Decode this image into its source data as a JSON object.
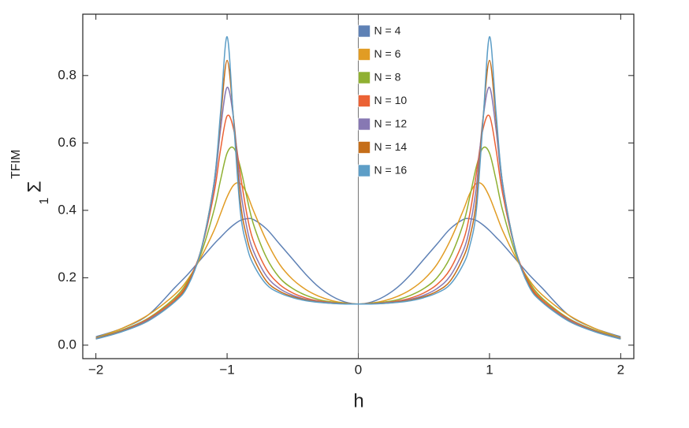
{
  "chart_data": {
    "type": "line",
    "x_label": "h",
    "y_label": "Σ",
    "y_label_sub": "1",
    "y_label_sup": "TFIM",
    "x": [
      -2,
      -1.8,
      -1.6,
      -1.4,
      -1.3,
      -1.2,
      -1.1,
      -1.05,
      -1,
      -0.95,
      -0.9,
      -0.85,
      -0.8,
      -0.7,
      -0.6,
      -0.5,
      -0.4,
      -0.3,
      -0.2,
      -0.1,
      0,
      0.1,
      0.2,
      0.3,
      0.4,
      0.5,
      0.6,
      0.7,
      0.8,
      0.85,
      0.9,
      0.95,
      1,
      1.05,
      1.1,
      1.2,
      1.3,
      1.4,
      1.6,
      1.8,
      2
    ],
    "series": [
      {
        "name": "N = 4",
        "color": "#5e81b5",
        "values": [
          0.025,
          0.05,
          0.09,
          0.17,
          0.21,
          0.255,
          0.3,
          0.32,
          0.34,
          0.357,
          0.37,
          0.375,
          0.373,
          0.345,
          0.3,
          0.255,
          0.21,
          0.172,
          0.145,
          0.128,
          0.122,
          0.128,
          0.145,
          0.172,
          0.21,
          0.255,
          0.3,
          0.345,
          0.373,
          0.375,
          0.37,
          0.357,
          0.34,
          0.32,
          0.3,
          0.255,
          0.21,
          0.17,
          0.09,
          0.05,
          0.025
        ]
      },
      {
        "name": "N = 6",
        "color": "#e19c24",
        "values": [
          0.022,
          0.05,
          0.09,
          0.15,
          0.195,
          0.26,
          0.34,
          0.39,
          0.44,
          0.475,
          0.48,
          0.45,
          0.4,
          0.31,
          0.24,
          0.195,
          0.165,
          0.145,
          0.132,
          0.125,
          0.122,
          0.125,
          0.132,
          0.145,
          0.165,
          0.195,
          0.24,
          0.31,
          0.4,
          0.45,
          0.48,
          0.475,
          0.44,
          0.39,
          0.34,
          0.26,
          0.195,
          0.15,
          0.09,
          0.05,
          0.022
        ]
      },
      {
        "name": "N = 8",
        "color": "#8fb032",
        "values": [
          0.021,
          0.045,
          0.08,
          0.14,
          0.19,
          0.27,
          0.4,
          0.49,
          0.57,
          0.585,
          0.53,
          0.44,
          0.36,
          0.26,
          0.2,
          0.168,
          0.148,
          0.135,
          0.128,
          0.124,
          0.122,
          0.124,
          0.128,
          0.135,
          0.148,
          0.168,
          0.2,
          0.26,
          0.36,
          0.44,
          0.53,
          0.585,
          0.57,
          0.49,
          0.4,
          0.27,
          0.19,
          0.14,
          0.08,
          0.045,
          0.021
        ]
      },
      {
        "name": "N = 10",
        "color": "#eb6235",
        "values": [
          0.02,
          0.043,
          0.078,
          0.135,
          0.185,
          0.28,
          0.45,
          0.58,
          0.68,
          0.64,
          0.51,
          0.39,
          0.31,
          0.225,
          0.18,
          0.155,
          0.14,
          0.131,
          0.126,
          0.123,
          0.122,
          0.123,
          0.126,
          0.131,
          0.14,
          0.155,
          0.18,
          0.225,
          0.31,
          0.39,
          0.51,
          0.64,
          0.68,
          0.58,
          0.45,
          0.28,
          0.185,
          0.135,
          0.078,
          0.043,
          0.02
        ]
      },
      {
        "name": "N = 12",
        "color": "#8778b3",
        "values": [
          0.02,
          0.042,
          0.075,
          0.13,
          0.18,
          0.28,
          0.47,
          0.64,
          0.765,
          0.67,
          0.47,
          0.35,
          0.28,
          0.205,
          0.168,
          0.148,
          0.136,
          0.129,
          0.125,
          0.123,
          0.122,
          0.123,
          0.125,
          0.129,
          0.136,
          0.148,
          0.168,
          0.205,
          0.28,
          0.35,
          0.47,
          0.67,
          0.765,
          0.64,
          0.47,
          0.28,
          0.18,
          0.13,
          0.075,
          0.042,
          0.02
        ]
      },
      {
        "name": "N = 14",
        "color": "#c56e1a",
        "values": [
          0.019,
          0.041,
          0.073,
          0.13,
          0.18,
          0.28,
          0.48,
          0.67,
          0.845,
          0.67,
          0.43,
          0.32,
          0.26,
          0.19,
          0.16,
          0.144,
          0.134,
          0.128,
          0.124,
          0.123,
          0.122,
          0.123,
          0.124,
          0.128,
          0.134,
          0.144,
          0.16,
          0.19,
          0.26,
          0.32,
          0.43,
          0.67,
          0.845,
          0.67,
          0.48,
          0.28,
          0.18,
          0.13,
          0.073,
          0.041,
          0.019
        ]
      },
      {
        "name": "N = 16",
        "color": "#5d9ec7",
        "values": [
          0.018,
          0.04,
          0.072,
          0.128,
          0.175,
          0.28,
          0.48,
          0.69,
          0.915,
          0.66,
          0.4,
          0.295,
          0.24,
          0.18,
          0.155,
          0.141,
          0.132,
          0.127,
          0.124,
          0.122,
          0.122,
          0.122,
          0.124,
          0.127,
          0.132,
          0.141,
          0.155,
          0.18,
          0.24,
          0.295,
          0.4,
          0.66,
          0.915,
          0.69,
          0.48,
          0.28,
          0.175,
          0.128,
          0.072,
          0.04,
          0.018
        ]
      }
    ],
    "xlim": [
      -2.1,
      2.1
    ],
    "ylim": [
      -0.04,
      0.982
    ],
    "xticks": [
      {
        "value": -2,
        "label": "−2"
      },
      {
        "value": -1,
        "label": "−1"
      },
      0,
      1,
      2
    ],
    "yticks": [
      {
        "value": 0,
        "label": "0.0"
      },
      0.2,
      0.4,
      0.6,
      0.8
    ],
    "legend": "top-center"
  }
}
